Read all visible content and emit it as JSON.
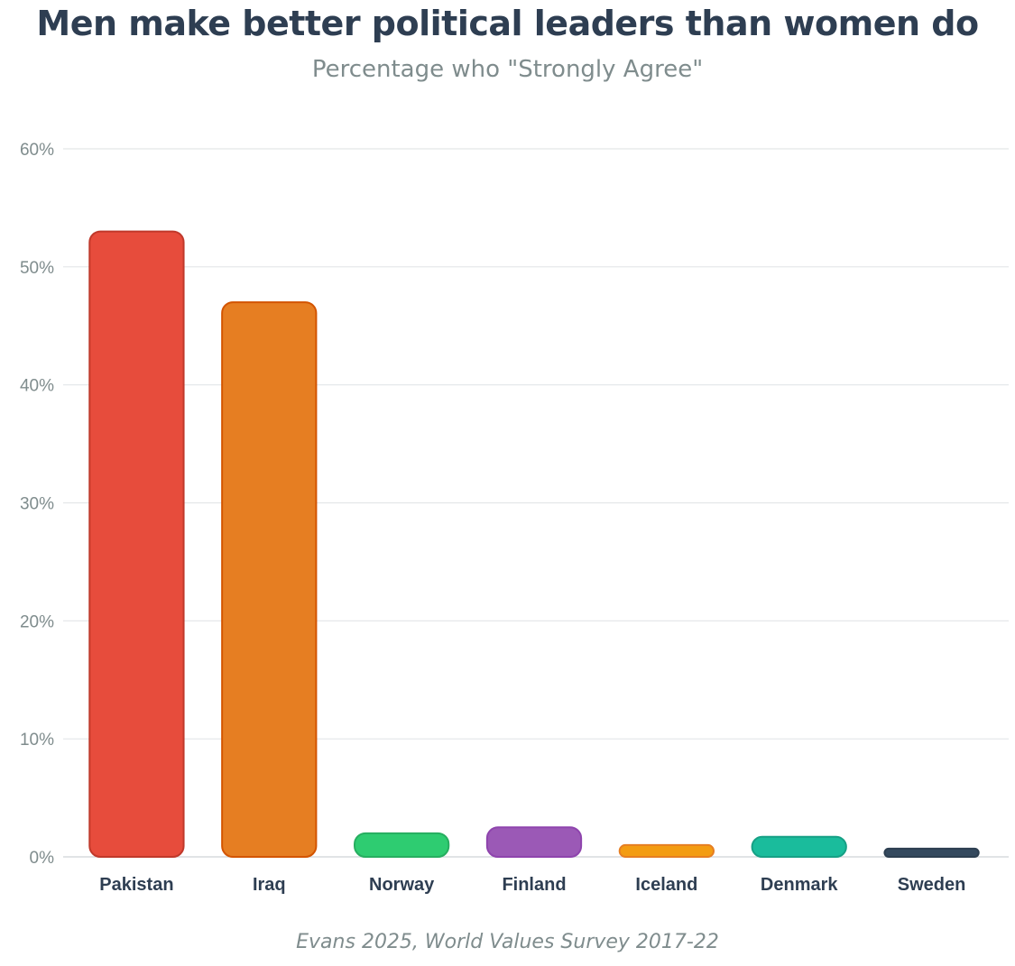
{
  "chart_data": {
    "type": "bar",
    "title": "Men make better political leaders than women do",
    "subtitle": "Percentage who \"Strongly Agree\"",
    "source": "Evans 2025, World Values Survey 2017-22",
    "categories": [
      "Pakistan",
      "Iraq",
      "Norway",
      "Finland",
      "Iceland",
      "Denmark",
      "Sweden"
    ],
    "values": [
      53,
      47,
      2,
      2.5,
      1,
      1.7,
      0.7
    ],
    "colors": [
      "#e74c3c",
      "#e67e22",
      "#2ecc71",
      "#9b59b6",
      "#f39c12",
      "#1abc9c",
      "#34495e"
    ],
    "border_colors": [
      "#c0392b",
      "#d35400",
      "#27ae60",
      "#8e44ad",
      "#e67e22",
      "#16a085",
      "#2c3e50"
    ],
    "ylim": [
      0,
      60
    ],
    "yticks": [
      0,
      10,
      20,
      30,
      40,
      50,
      60
    ],
    "ytick_labels": [
      "0%",
      "10%",
      "20%",
      "30%",
      "40%",
      "50%",
      "60%"
    ],
    "xlabel": "",
    "ylabel": "",
    "grid": true,
    "legend": "none"
  }
}
